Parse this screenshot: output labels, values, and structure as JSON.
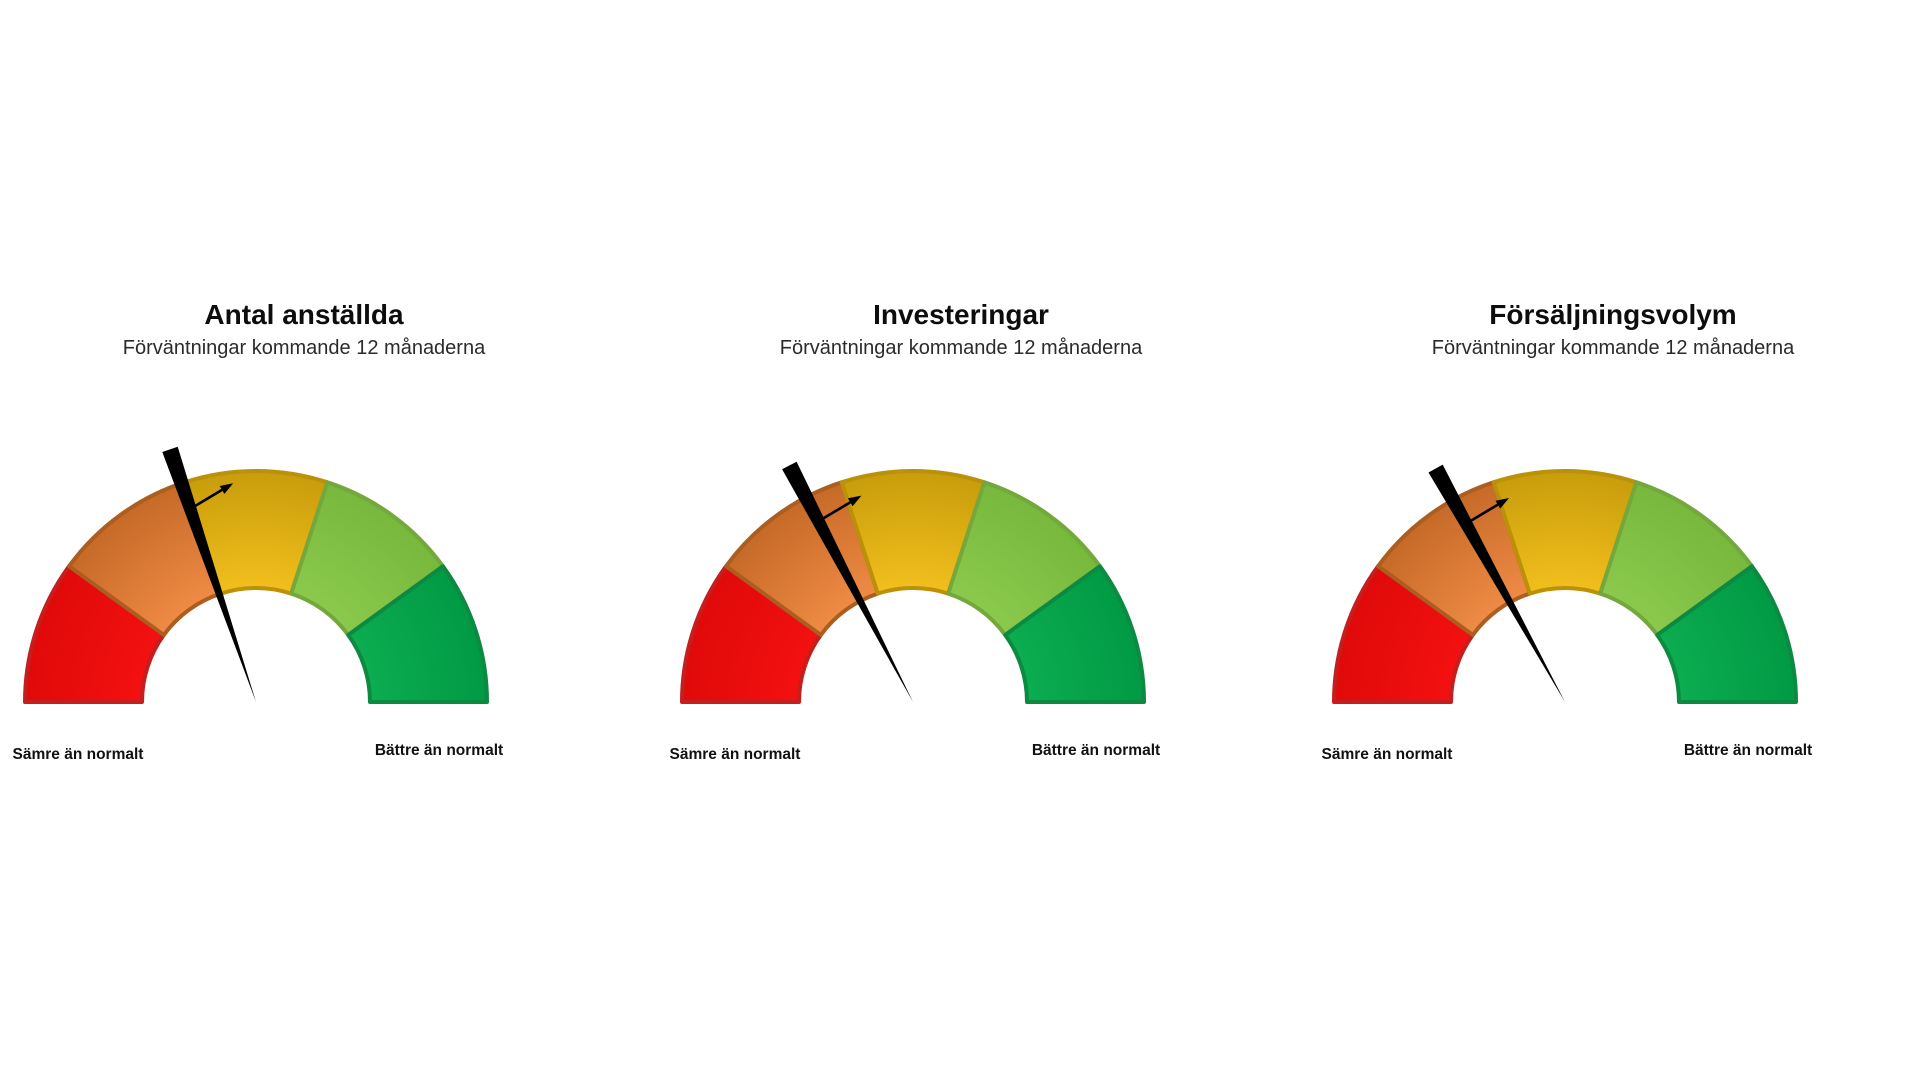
{
  "page": {
    "background": "#FFFFFF"
  },
  "gauge_style": {
    "needle_color": "#000000",
    "arrow_color": "#000000",
    "segments": [
      {
        "name": "red",
        "inner": "#F31010",
        "outer": "#E00A0A",
        "border": "#C41E1E"
      },
      {
        "name": "orange",
        "inner": "#EE8A44",
        "outer": "#C66A28",
        "border": "#AC5D20"
      },
      {
        "name": "gold",
        "inner": "#F1BE1D",
        "outer": "#C89D0B",
        "border": "#BA9108"
      },
      {
        "name": "light-green",
        "inner": "#8AC94C",
        "outer": "#77B83D",
        "border": "#74A73C"
      },
      {
        "name": "green",
        "inner": "#0CAC50",
        "outer": "#019A44",
        "border": "#0D8A42"
      }
    ]
  },
  "chart_data": [
    {
      "type": "gauge",
      "title": "Antal anställda",
      "subtitle": "Förväntningar kommande 12 månaderna",
      "left_label": "Sämre än normalt",
      "right_label": "Bättre än normalt",
      "scale": {
        "min_meaning": "Sämre än normalt",
        "max_meaning": "Bättre än normalt",
        "segment_count": 5,
        "segment_sweep_deg": 36
      },
      "needle_angle_deg": 108.8,
      "needle_fraction_from_worst": 0.4
    },
    {
      "type": "gauge",
      "title": "Investeringar",
      "subtitle": "Förväntningar kommande 12 månaderna",
      "left_label": "Sämre än normalt",
      "right_label": "Bättre än normalt",
      "scale": {
        "min_meaning": "Sämre än normalt",
        "max_meaning": "Bättre än normalt",
        "segment_count": 5,
        "segment_sweep_deg": 36
      },
      "needle_angle_deg": 117.6,
      "needle_fraction_from_worst": 0.35
    },
    {
      "type": "gauge",
      "title": "Försäljningsvolym",
      "subtitle": "Förväntningar kommande 12 månaderna",
      "left_label": "Sämre än normalt",
      "right_label": "Bättre än normalt",
      "scale": {
        "min_meaning": "Sämre än normalt",
        "max_meaning": "Bättre än normalt",
        "segment_count": 5,
        "segment_sweep_deg": 36
      },
      "needle_angle_deg": 119.0,
      "needle_fraction_from_worst": 0.34
    }
  ]
}
